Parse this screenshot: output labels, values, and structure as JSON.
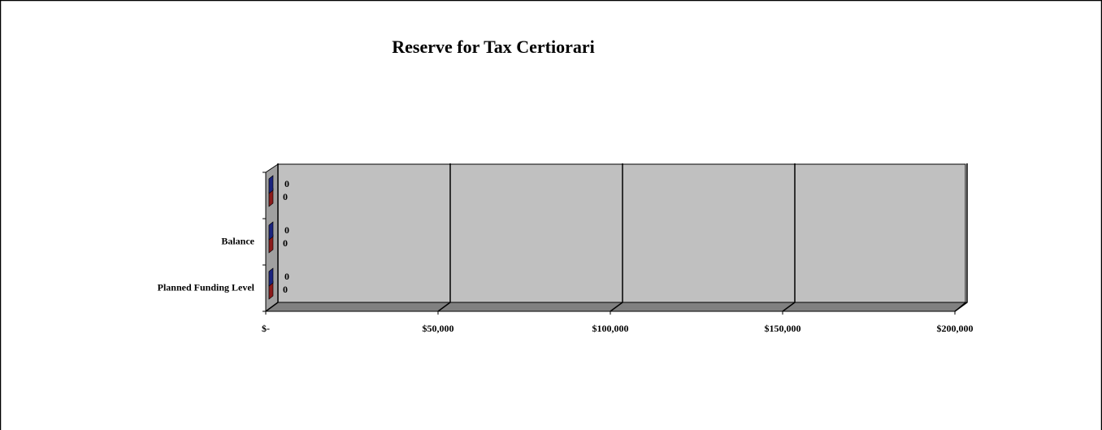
{
  "chart_data": {
    "type": "bar3d_horizontal",
    "title": "Reserve for Tax Certiorari",
    "categories": [
      "Planned Funding Level",
      "Balance",
      null
    ],
    "series": [
      {
        "color": "#8b1a1a",
        "values": [
          0,
          0,
          0
        ]
      },
      {
        "color": "#1a237e",
        "values": [
          0,
          0,
          0
        ]
      }
    ],
    "xlim": [
      0,
      200000
    ],
    "xticks": [
      {
        "value": 0,
        "label": "$-"
      },
      {
        "value": 50000,
        "label": "$50,000"
      },
      {
        "value": 100000,
        "label": "$100,000"
      },
      {
        "value": 150000,
        "label": "$150,000"
      },
      {
        "value": 200000,
        "label": "$200,000"
      }
    ],
    "grid": true
  }
}
